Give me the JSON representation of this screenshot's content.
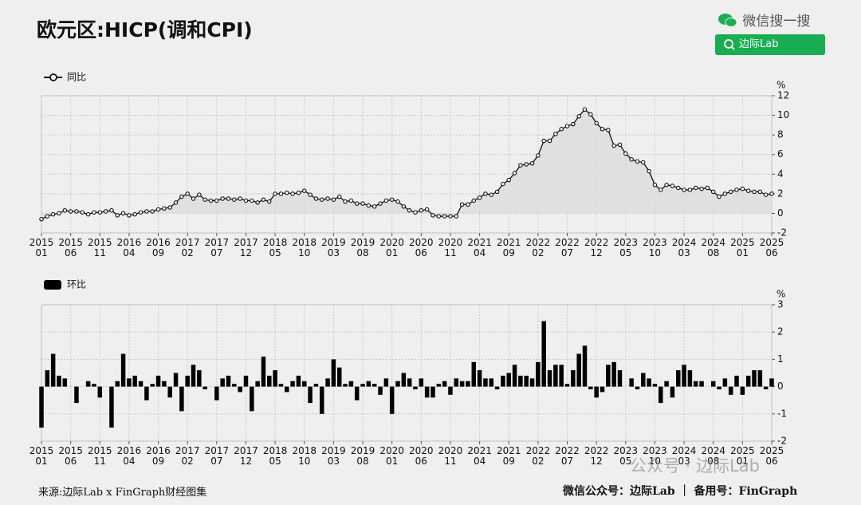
{
  "header": {
    "title": "欧元区:HICP(调和CPI)",
    "search_label": "微信搜一搜",
    "search_button": "边际Lab"
  },
  "chart_data": [
    {
      "type": "line",
      "y_unit": "%",
      "ylim": [
        -2,
        12
      ],
      "yticks": [
        -2,
        0,
        2,
        4,
        6,
        8,
        10,
        12
      ],
      "grid": true,
      "categories": [
        "2015\n01",
        null,
        null,
        null,
        null,
        "2015\n06",
        null,
        null,
        null,
        null,
        "2015\n11",
        null,
        null,
        null,
        null,
        "2016\n04",
        null,
        null,
        null,
        null,
        "2016\n09",
        null,
        null,
        null,
        null,
        "2017\n02",
        null,
        null,
        null,
        null,
        "2017\n07",
        null,
        null,
        null,
        null,
        "2017\n12",
        null,
        null,
        null,
        null,
        "2018\n05",
        null,
        null,
        null,
        null,
        "2018\n10",
        null,
        null,
        null,
        null,
        "2019\n03",
        null,
        null,
        null,
        null,
        "2019\n08",
        null,
        null,
        null,
        null,
        "2020\n01",
        null,
        null,
        null,
        null,
        "2020\n06",
        null,
        null,
        null,
        null,
        "2020\n11",
        null,
        null,
        null,
        null,
        "2021\n04",
        null,
        null,
        null,
        null,
        "2021\n09",
        null,
        null,
        null,
        null,
        "2022\n02",
        null,
        null,
        null,
        null,
        "2022\n07",
        null,
        null,
        null,
        null,
        "2022\n12",
        null,
        null,
        null,
        null,
        "2023\n05",
        null,
        null,
        null,
        null,
        "2023\n10",
        null,
        null,
        null,
        null,
        "2024\n03",
        null,
        null,
        null,
        null,
        "2024\n08",
        null,
        null,
        null,
        null,
        "2025\n01",
        null,
        null,
        null,
        null,
        "2025\n06"
      ],
      "series": [
        {
          "name": "同比",
          "color": "#111111",
          "values": [
            -0.6,
            -0.3,
            -0.1,
            0.0,
            0.3,
            0.2,
            0.2,
            0.1,
            -0.1,
            0.1,
            0.1,
            0.2,
            0.3,
            -0.2,
            0.0,
            -0.2,
            -0.1,
            0.1,
            0.2,
            0.2,
            0.4,
            0.5,
            0.6,
            1.1,
            1.7,
            2.0,
            1.5,
            1.9,
            1.4,
            1.3,
            1.3,
            1.5,
            1.5,
            1.4,
            1.5,
            1.3,
            1.3,
            1.1,
            1.4,
            1.2,
            2.0,
            2.0,
            2.1,
            2.0,
            2.1,
            2.3,
            1.9,
            1.5,
            1.4,
            1.5,
            1.4,
            1.7,
            1.2,
            1.3,
            1.0,
            1.0,
            0.8,
            0.7,
            1.0,
            1.3,
            1.4,
            1.2,
            0.7,
            0.3,
            0.1,
            0.3,
            0.4,
            -0.2,
            -0.3,
            -0.3,
            -0.3,
            -0.3,
            0.9,
            0.9,
            1.3,
            1.6,
            2.0,
            1.9,
            2.2,
            3.0,
            3.4,
            4.1,
            4.9,
            5.0,
            5.1,
            5.9,
            7.4,
            7.4,
            8.1,
            8.6,
            8.9,
            9.1,
            9.9,
            10.6,
            10.1,
            9.2,
            8.6,
            8.5,
            6.9,
            7.0,
            6.1,
            5.5,
            5.3,
            5.2,
            4.3,
            2.9,
            2.4,
            2.9,
            2.8,
            2.6,
            2.4,
            2.4,
            2.6,
            2.5,
            2.6,
            2.2,
            1.7,
            2.0,
            2.2,
            2.4,
            2.5,
            2.3,
            2.2,
            2.2,
            1.9,
            2.0
          ]
        }
      ]
    },
    {
      "type": "bar",
      "y_unit": "%",
      "ylim": [
        -2,
        3
      ],
      "yticks": [
        -2,
        -1,
        0,
        1,
        2,
        3
      ],
      "grid": true,
      "categories": [
        "2015\n01",
        null,
        null,
        null,
        null,
        "2015\n06",
        null,
        null,
        null,
        null,
        "2015\n11",
        null,
        null,
        null,
        null,
        "2016\n04",
        null,
        null,
        null,
        null,
        "2016\n09",
        null,
        null,
        null,
        null,
        "2017\n02",
        null,
        null,
        null,
        null,
        "2017\n07",
        null,
        null,
        null,
        null,
        "2017\n12",
        null,
        null,
        null,
        null,
        "2018\n05",
        null,
        null,
        null,
        null,
        "2018\n10",
        null,
        null,
        null,
        null,
        "2019\n03",
        null,
        null,
        null,
        null,
        "2019\n08",
        null,
        null,
        null,
        null,
        "2020\n01",
        null,
        null,
        null,
        null,
        "2020\n06",
        null,
        null,
        null,
        null,
        "2020\n11",
        null,
        null,
        null,
        null,
        "2021\n04",
        null,
        null,
        null,
        null,
        "2021\n09",
        null,
        null,
        null,
        null,
        "2022\n02",
        null,
        null,
        null,
        null,
        "2022\n07",
        null,
        null,
        null,
        null,
        "2022\n12",
        null,
        null,
        null,
        null,
        "2023\n05",
        null,
        null,
        null,
        null,
        "2023\n10",
        null,
        null,
        null,
        null,
        "2024\n03",
        null,
        null,
        null,
        null,
        "2024\n08",
        null,
        null,
        null,
        null,
        "2025\n01",
        null,
        null,
        null,
        null,
        "2025\n06"
      ],
      "series": [
        {
          "name": "环比",
          "color": "#000000",
          "values": [
            -1.5,
            0.6,
            1.2,
            0.4,
            0.3,
            0.0,
            -0.6,
            0.0,
            0.2,
            0.1,
            -0.4,
            0.0,
            -1.5,
            0.2,
            1.2,
            0.3,
            0.4,
            0.2,
            -0.5,
            0.1,
            0.4,
            0.2,
            -0.4,
            0.5,
            -0.9,
            0.4,
            0.8,
            0.6,
            -0.1,
            0.0,
            -0.5,
            0.3,
            0.4,
            0.1,
            -0.2,
            0.4,
            -0.9,
            0.2,
            1.1,
            0.4,
            0.6,
            0.1,
            -0.2,
            0.2,
            0.4,
            0.2,
            -0.6,
            0.1,
            -1.0,
            0.3,
            1.0,
            0.7,
            0.1,
            0.2,
            -0.5,
            0.1,
            0.2,
            0.1,
            -0.3,
            0.3,
            -1.0,
            0.2,
            0.5,
            0.3,
            -0.1,
            0.3,
            -0.4,
            -0.4,
            0.1,
            0.2,
            -0.3,
            0.3,
            0.2,
            0.2,
            0.9,
            0.6,
            0.3,
            0.3,
            -0.1,
            0.4,
            0.5,
            0.8,
            0.4,
            0.4,
            0.3,
            0.9,
            2.4,
            0.6,
            0.8,
            0.8,
            0.1,
            0.6,
            1.2,
            1.5,
            -0.1,
            -0.4,
            -0.2,
            0.8,
            0.9,
            0.6,
            0.0,
            0.3,
            -0.1,
            0.5,
            0.3,
            0.1,
            -0.6,
            0.2,
            -0.4,
            0.6,
            0.8,
            0.6,
            0.2,
            0.2,
            0.0,
            0.2,
            -0.1,
            0.3,
            -0.3,
            0.4,
            -0.3,
            0.4,
            0.6,
            0.6,
            -0.1,
            0.3
          ]
        }
      ]
    }
  ],
  "footer": {
    "source": "来源:边际Lab x FinGraph财经图集",
    "accounts": "微信公众号：边际Lab ｜ 备用号：FinGraph"
  },
  "watermark": "公众号 · 边际Lab"
}
